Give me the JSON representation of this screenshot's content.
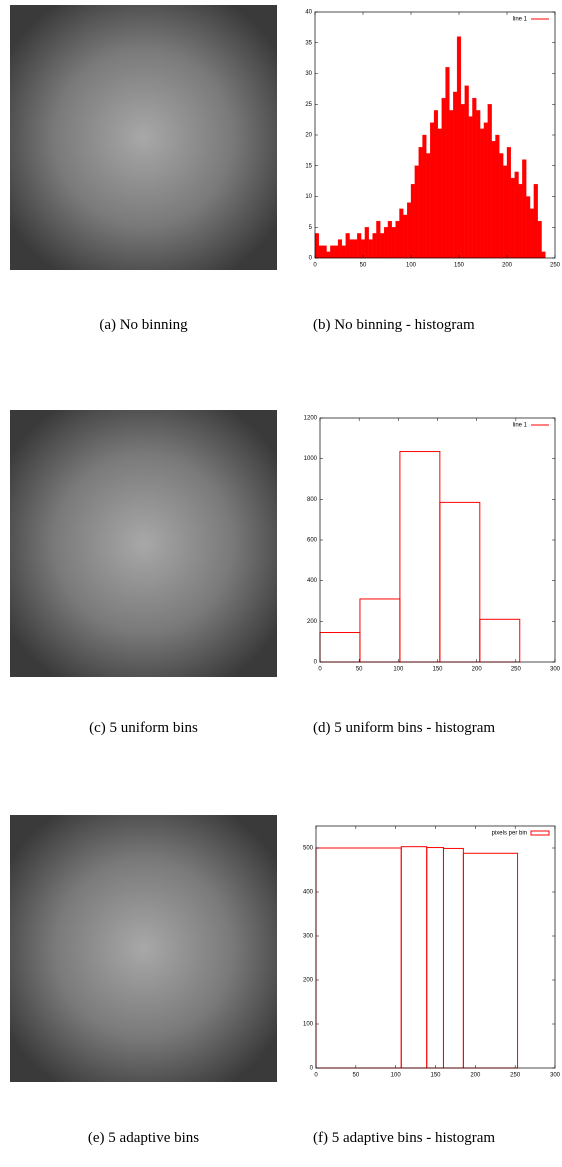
{
  "image_captions": [
    "(a) No binning",
    "(c) 5 uniform bins",
    "(e) 5 adaptive bins"
  ],
  "chart_data": [
    {
      "type": "histogram",
      "caption": "(b) No binning - histogram",
      "legend": "line 1",
      "legend_style": "line",
      "color": "#ff0000",
      "filled": true,
      "bins": [
        0,
        4,
        8,
        12,
        16,
        20,
        24,
        28,
        32,
        36,
        40,
        44,
        48,
        52,
        56,
        60,
        64,
        68,
        72,
        76,
        80,
        84,
        88,
        92,
        96,
        100,
        104,
        108,
        112,
        116,
        120,
        124,
        128,
        132,
        136,
        140,
        144,
        148,
        152,
        156,
        160,
        164,
        168,
        172,
        176,
        180,
        184,
        188,
        192,
        196,
        200,
        204,
        208,
        212,
        216,
        220,
        224,
        228,
        232,
        236,
        240
      ],
      "values": [
        4,
        2,
        2,
        1,
        2,
        2,
        3,
        2,
        4,
        3,
        3,
        4,
        3,
        5,
        3,
        4,
        6,
        4,
        5,
        6,
        5,
        6,
        8,
        7,
        9,
        12,
        15,
        18,
        20,
        17,
        22,
        24,
        21,
        26,
        31,
        24,
        27,
        36,
        25,
        28,
        23,
        26,
        24,
        21,
        22,
        25,
        19,
        20,
        17,
        15,
        18,
        13,
        14,
        12,
        16,
        10,
        8,
        12,
        6,
        1
      ],
      "xlim": [
        0,
        250
      ],
      "xticks": [
        0,
        50,
        100,
        150,
        200,
        250
      ],
      "ylim": [
        0,
        40
      ],
      "yticks": [
        0,
        5,
        10,
        15,
        20,
        25,
        30,
        35,
        40
      ]
    },
    {
      "type": "histogram",
      "caption": "(d) 5 uniform bins - histogram",
      "legend": "line 1",
      "legend_style": "line",
      "color": "#ff0000",
      "filled": false,
      "bins": [
        0,
        51,
        102,
        153,
        204,
        255
      ],
      "values": [
        145,
        310,
        1035,
        785,
        210
      ],
      "xlim": [
        0,
        300
      ],
      "xticks": [
        0,
        50,
        100,
        150,
        200,
        250,
        300
      ],
      "ylim": [
        0,
        1200
      ],
      "yticks": [
        0,
        200,
        400,
        600,
        800,
        1000,
        1200
      ]
    },
    {
      "type": "histogram",
      "caption": "(f) 5 adaptive bins - histogram",
      "legend": "pixels per bin",
      "legend_style": "box",
      "color": "#ff0000",
      "filled": false,
      "bins": [
        0,
        107,
        139,
        160,
        185,
        253
      ],
      "values": [
        500,
        503,
        501,
        499,
        488
      ],
      "xlim": [
        0,
        300
      ],
      "xticks": [
        0,
        50,
        100,
        150,
        200,
        250,
        300
      ],
      "ylim": [
        0,
        550
      ],
      "yticks": [
        0,
        100,
        200,
        300,
        400,
        500
      ]
    }
  ]
}
